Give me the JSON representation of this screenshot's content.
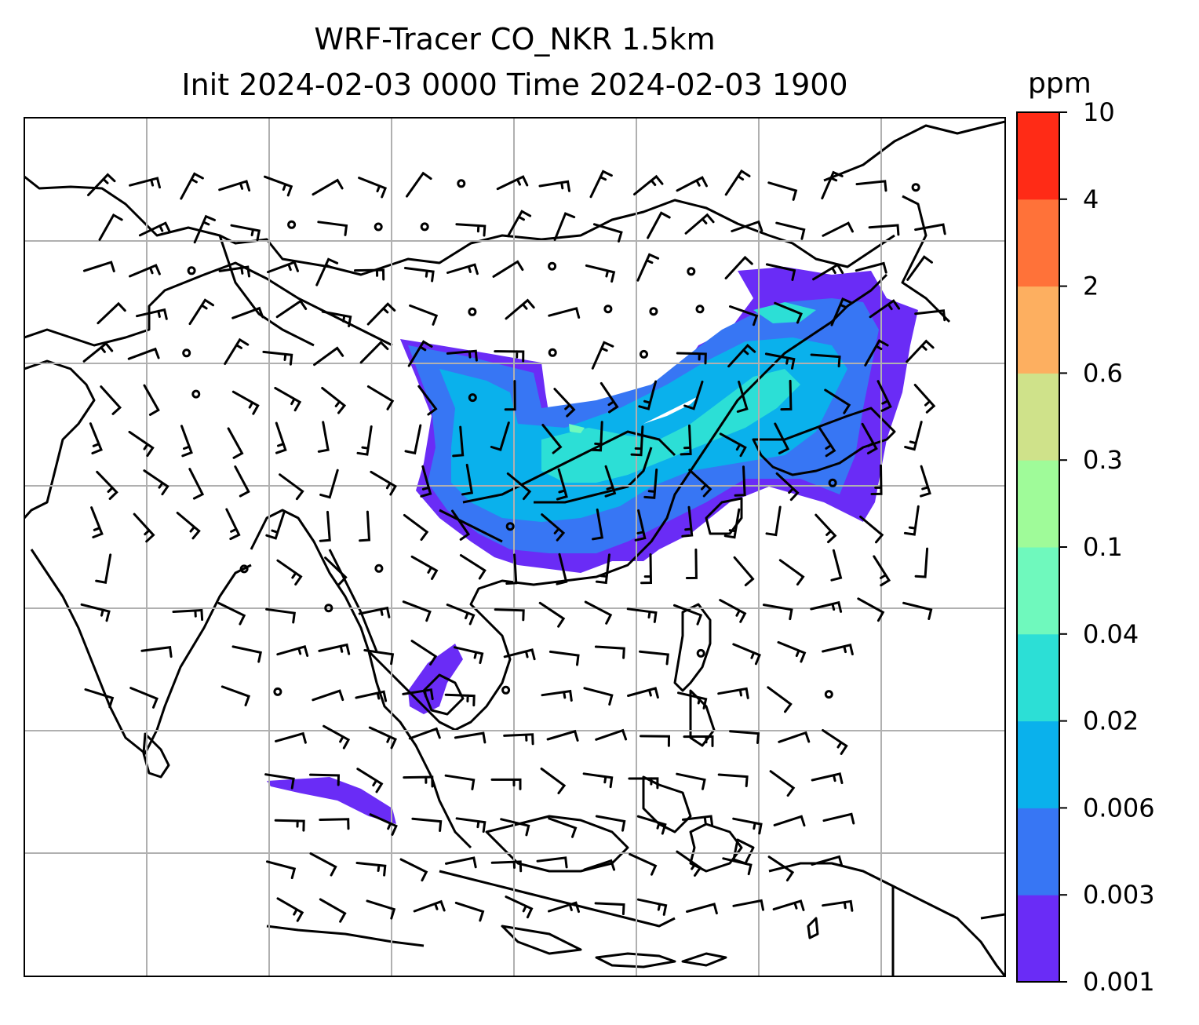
{
  "title": {
    "line1": "WRF-Tracer CO_NKR 1.5km",
    "line2": "Init 2024-02-03 0000 Time 2024-02-03 1900"
  },
  "colorbar": {
    "unit": "ppm",
    "levels": [
      "0.001",
      "0.003",
      "0.006",
      "0.02",
      "0.04",
      "0.1",
      "0.3",
      "0.6",
      "2",
      "4",
      "10"
    ],
    "colors": [
      "#6a2cf6",
      "#3776f4",
      "#0ab1ec",
      "#2cdfd6",
      "#6ff9bd",
      "#9ffb99",
      "#cfe28a",
      "#fdaf60",
      "#ff7239",
      "#ff2b16"
    ]
  },
  "map": {
    "gridlines": true,
    "wind_barbs": true,
    "coastlines": true,
    "tracer_field": "CO_NKR"
  }
}
